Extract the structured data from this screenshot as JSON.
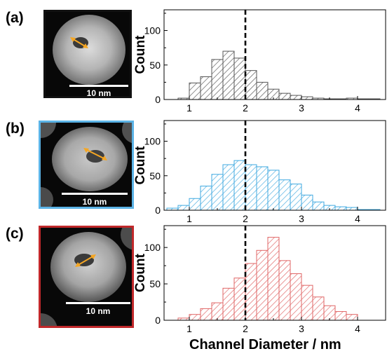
{
  "panels": [
    {
      "label": "(a)",
      "scale_label": "10 nm",
      "frame_color": "#111111"
    },
    {
      "label": "(b)",
      "scale_label": "10 nm",
      "frame_color": "#5bb3e6"
    },
    {
      "label": "(c)",
      "scale_label": "10 nm",
      "frame_color": "#c0282a"
    }
  ],
  "marker_color": "#f5a623",
  "chart_data": [
    {
      "type": "bar",
      "panel": "(a)",
      "ylabel": "Count",
      "xlabel": "Channel Diameter / nm",
      "xlim": [
        0.55,
        4.5
      ],
      "ylim": [
        0,
        130
      ],
      "xticks": [
        1,
        2,
        3,
        4
      ],
      "yticks": [
        0,
        50,
        100
      ],
      "bin_width": 0.2,
      "bin_starts": [
        0.8,
        1.0,
        1.2,
        1.4,
        1.6,
        1.8,
        2.0,
        2.2,
        2.4,
        2.6,
        2.8,
        3.0,
        3.2,
        3.4,
        3.6,
        3.8,
        4.0,
        4.2
      ],
      "values": [
        2,
        24,
        33,
        58,
        70,
        60,
        42,
        25,
        15,
        9,
        6,
        4,
        2,
        1,
        1,
        2,
        1,
        1
      ],
      "color": "#555555",
      "reference_line_x": 2.0
    },
    {
      "type": "bar",
      "panel": "(b)",
      "ylabel": "Count",
      "xlabel": "Channel Diameter / nm",
      "xlim": [
        0.55,
        4.5
      ],
      "ylim": [
        0,
        130
      ],
      "xticks": [
        1,
        2,
        3,
        4
      ],
      "yticks": [
        0,
        50,
        100
      ],
      "bin_width": 0.2,
      "bin_starts": [
        0.6,
        0.8,
        1.0,
        1.2,
        1.4,
        1.6,
        1.8,
        2.0,
        2.2,
        2.4,
        2.6,
        2.8,
        3.0,
        3.2,
        3.4,
        3.6,
        3.8,
        4.0,
        4.2
      ],
      "values": [
        3,
        7,
        17,
        35,
        52,
        66,
        72,
        66,
        63,
        58,
        44,
        38,
        22,
        12,
        7,
        5,
        4,
        1,
        1
      ],
      "color": "#3fa9e0",
      "reference_line_x": 2.0
    },
    {
      "type": "bar",
      "panel": "(c)",
      "ylabel": "Count",
      "xlabel": "Channel Diameter / nm",
      "xlim": [
        0.55,
        4.5
      ],
      "ylim": [
        0,
        130
      ],
      "xticks": [
        1,
        2,
        3,
        4
      ],
      "yticks": [
        0,
        50,
        100
      ],
      "bin_width": 0.2,
      "bin_starts": [
        0.8,
        1.0,
        1.2,
        1.4,
        1.6,
        1.8,
        2.0,
        2.2,
        2.4,
        2.6,
        2.8,
        3.0,
        3.2,
        3.4,
        3.6,
        3.8
      ],
      "values": [
        3,
        8,
        16,
        24,
        44,
        58,
        78,
        96,
        114,
        82,
        64,
        48,
        32,
        20,
        12,
        8
      ],
      "color": "#e06666",
      "reference_line_x": 2.0
    }
  ]
}
